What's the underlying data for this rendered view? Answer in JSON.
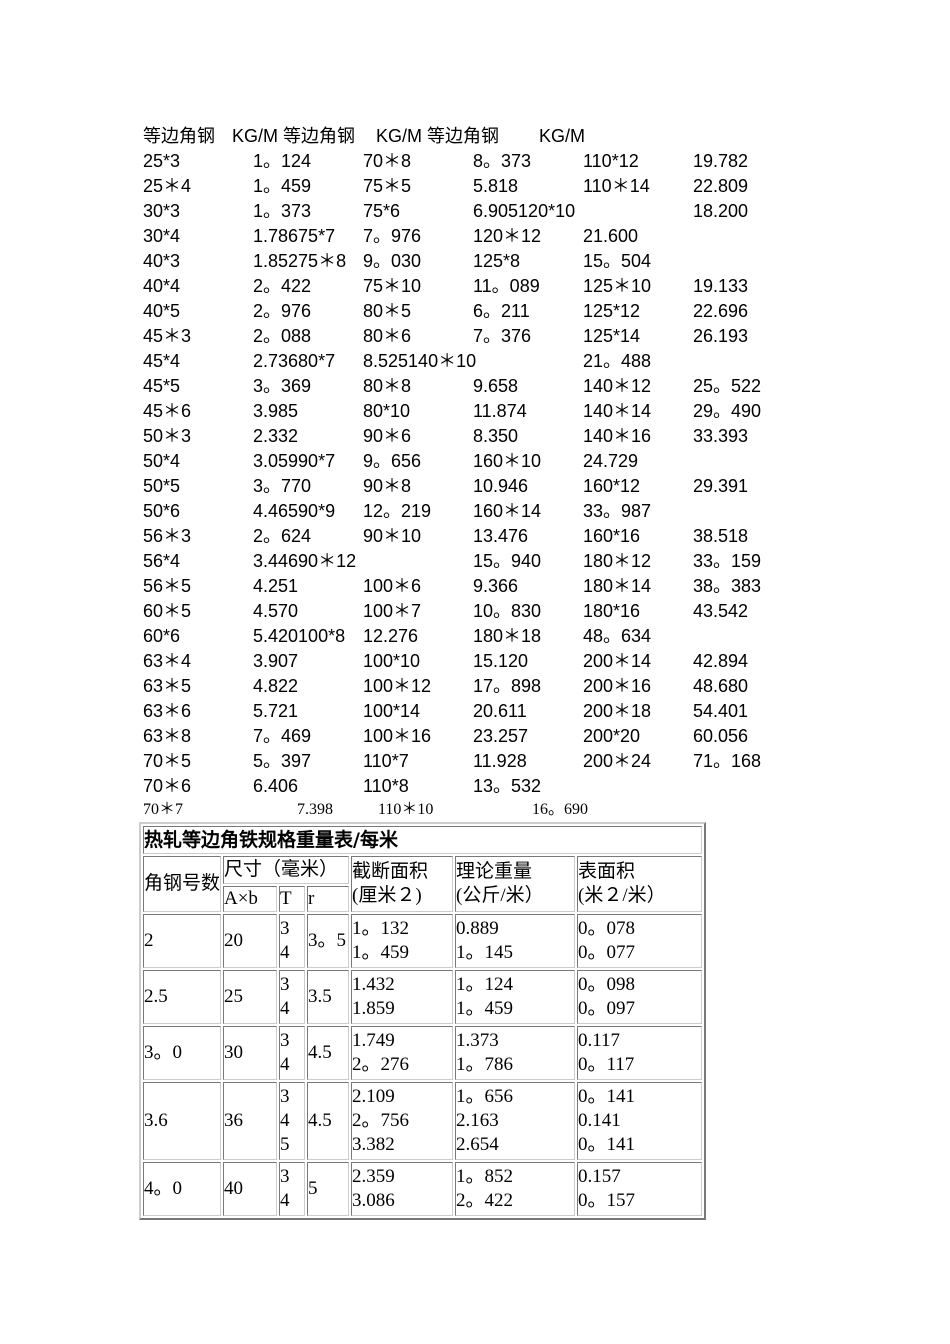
{
  "text_block": {
    "header": [
      "等边角钢",
      "KG/M 等边角钢",
      "KG/M 等边角钢",
      "KG/M"
    ],
    "lines": [
      [
        "25*3",
        "1。124",
        "70＊8",
        "8。373",
        "110*12",
        "19.782"
      ],
      [
        "25＊4",
        "1。459",
        "75＊5",
        "5.818",
        "110＊14",
        "22.809"
      ],
      [
        "30*3",
        "1。373",
        "75*6",
        "6.905120*10",
        "18.200"
      ],
      [
        "30*4",
        "1.78675*7",
        "7。976",
        "120＊12",
        "21.600"
      ],
      [
        "40*3",
        "1.85275＊8",
        "9。030",
        "125*8",
        "15。504"
      ],
      [
        "40*4",
        "2。422",
        "75＊10",
        "11。089",
        "125＊10",
        "19.133"
      ],
      [
        "40*5",
        "2。976",
        "80＊5",
        "6。211",
        "125*12",
        "22.696"
      ],
      [
        "45＊3",
        "2。088",
        "80＊6",
        "7。376",
        "125*14",
        "26.193"
      ],
      [
        "45*4",
        "2.73680*7",
        "8.525140＊10",
        "21。488"
      ],
      [
        "45*5",
        "3。369",
        "80＊8",
        "9.658",
        "140＊12",
        "25。522"
      ],
      [
        "45＊6",
        "3.985",
        "80*10",
        "11.874",
        "140＊14",
        "29。490"
      ],
      [
        "50＊3",
        "2.332",
        "90＊6",
        "8.350",
        "140＊16",
        "33.393"
      ],
      [
        "50*4",
        "3.05990*7",
        "9。656",
        "160＊10",
        "24.729"
      ],
      [
        "50*5",
        "3。770",
        "90＊8",
        "10.946",
        "160*12",
        "29.391"
      ],
      [
        "50*6",
        "4.46590*9",
        "12。219",
        "160＊14",
        "33。987"
      ],
      [
        "56＊3",
        "2。624",
        "90＊10",
        "13.476",
        "160*16",
        "38.518"
      ],
      [
        "56*4",
        "3.44690＊12",
        "15。940",
        "180＊12",
        "33。159"
      ],
      [
        "56＊5",
        "4.251",
        "100＊6",
        "9.366",
        "180＊14",
        "38。383"
      ],
      [
        "60＊5",
        "4.570",
        "100＊7",
        "10。830",
        "180*16",
        "43.542"
      ],
      [
        "60*6",
        "5.420100*8",
        "12.276",
        "180＊18",
        "48。634"
      ],
      [
        "63＊4",
        "3.907",
        "100*10",
        "15.120",
        "200＊14",
        "42.894"
      ],
      [
        "63＊5",
        "4.822",
        "100＊12",
        "17。898",
        "200＊16",
        "48.680"
      ],
      [
        "63＊6",
        "5.721",
        "100*14",
        "20.611",
        "200＊18",
        "54.401"
      ],
      [
        "63＊8",
        "7。469",
        "100＊16",
        "23.257",
        "200*20",
        "60.056"
      ],
      [
        "70＊5",
        "5。397",
        "110*7",
        "11.928",
        "200＊24",
        "71。168"
      ],
      [
        "70＊6",
        "6.406",
        "110*8",
        "13。532"
      ]
    ],
    "last_line": [
      "70＊7",
      "7.398",
      "110＊10",
      "16。690"
    ]
  },
  "table": {
    "title": "热轧等边角铁规格重量表/每米",
    "header": {
      "number": "角钢号数",
      "size": "尺寸（毫米）",
      "size_sub": [
        "A×b",
        "T",
        "r"
      ],
      "area": [
        "截断面积",
        "(厘米２)"
      ],
      "weight": [
        "理论重量",
        "(公斤/米）"
      ],
      "surface": [
        "表面积",
        "(米２/米）"
      ]
    },
    "rows": [
      [
        [
          "2"
        ],
        [
          "20"
        ],
        [
          "3",
          "4"
        ],
        [
          "3。5"
        ],
        [
          "1。132",
          "1。459"
        ],
        [
          "0.889",
          "1。145"
        ],
        [
          "0。078",
          "0。077"
        ]
      ],
      [
        [
          "2.5"
        ],
        [
          "25"
        ],
        [
          "3",
          "4"
        ],
        [
          "3.5"
        ],
        [
          "1.432",
          "1.859"
        ],
        [
          "1。124",
          "1。459"
        ],
        [
          "0。098",
          "0。097"
        ]
      ],
      [
        [
          "3。0"
        ],
        [
          "30"
        ],
        [
          "3",
          "4"
        ],
        [
          "4.5"
        ],
        [
          "1.749",
          "2。276"
        ],
        [
          "1.373",
          "1。786"
        ],
        [
          "0.117",
          "0。117"
        ]
      ],
      [
        [
          "3.6"
        ],
        [
          "36"
        ],
        [
          "3",
          "4",
          "5"
        ],
        [
          "4.5"
        ],
        [
          "2.109",
          "2。756",
          "3.382"
        ],
        [
          "1。656",
          "2.163",
          "2.654"
        ],
        [
          "0。141",
          "0.141",
          "0。141"
        ]
      ],
      [
        [
          "4。0"
        ],
        [
          "40"
        ],
        [
          "3",
          "4"
        ],
        [
          "5"
        ],
        [
          "2.359",
          "3.086"
        ],
        [
          "1。852",
          "2。422"
        ],
        [
          "0.157",
          "0。157"
        ]
      ]
    ]
  }
}
